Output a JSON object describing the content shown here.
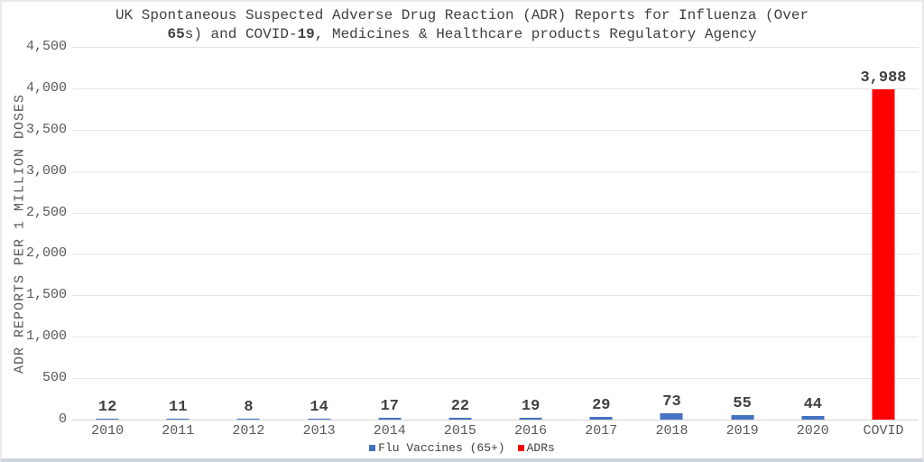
{
  "header": {
    "title_lines": [
      "UK Spontaneous Suspected Adverse Drug Reaction (ADR) Reports for Influenza (Over",
      "65s) and COVID-19, Medicines & Healthcare products Regulatory Agency"
    ]
  },
  "colors": {
    "flu_series": "#4472C4",
    "adr_series": "#FF0000",
    "title_text": "#404040",
    "axis_text": "#595959",
    "gridline": "#E5E5E5"
  },
  "chart_data": {
    "type": "bar",
    "title": "UK Spontaneous Suspected Adverse Drug Reaction (ADR) Reports for Influenza (Over 65s) and COVID-19, Medicines & Healthcare products Regulatory Agency",
    "xlabel": "",
    "ylabel": "ADR REPORTS PER 1 MILLION DOSES",
    "categories": [
      "2010",
      "2011",
      "2012",
      "2013",
      "2014",
      "2015",
      "2016",
      "2017",
      "2018",
      "2019",
      "2020",
      "COVID"
    ],
    "series": [
      {
        "name": "Flu Vaccines (65+)",
        "color": "#4472C4",
        "values": [
          12,
          11,
          8,
          14,
          17,
          22,
          19,
          29,
          73,
          55,
          44,
          null
        ]
      },
      {
        "name": "ADRs",
        "color": "#FF0000",
        "values": [
          null,
          null,
          null,
          null,
          null,
          null,
          null,
          null,
          null,
          null,
          null,
          3988
        ]
      }
    ],
    "data_labels": [
      "12",
      "11",
      "8",
      "14",
      "17",
      "22",
      "19",
      "29",
      "73",
      "55",
      "44",
      "3,988"
    ],
    "ylim": [
      0,
      4500
    ],
    "ytick_interval": 500,
    "ytick_labels": [
      "0",
      "500",
      "1,000",
      "1,500",
      "2,000",
      "2,500",
      "3,000",
      "3,500",
      "4,000",
      "4,500"
    ],
    "grid": true,
    "legend_position": "bottom"
  }
}
